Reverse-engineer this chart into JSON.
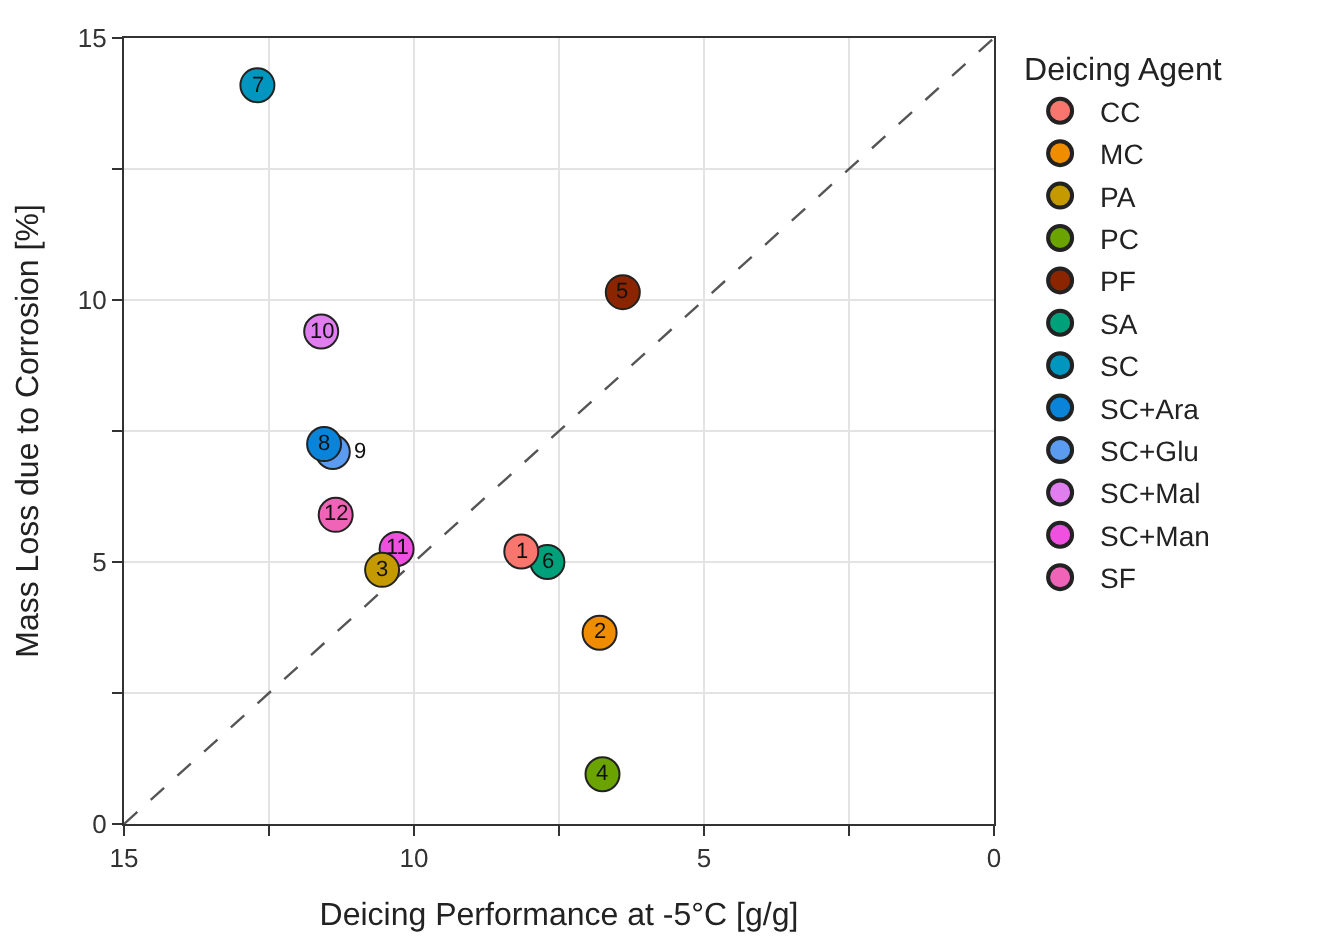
{
  "chart_data": {
    "type": "scatter",
    "xlabel": "Deicing Performance at -5°C [g/g]",
    "ylabel": "Mass Loss due to Corrosion [%]",
    "legend_title": "Deicing Agent",
    "xlim": [
      15,
      0
    ],
    "xticks": [
      15,
      {
        "value": 12.5,
        "label": null
      },
      10,
      {
        "value": 7.5,
        "label": null
      },
      5,
      {
        "value": 2.5,
        "label": null
      },
      0
    ],
    "ylim": [
      0,
      15
    ],
    "yticks": [
      0,
      {
        "value": 2.5,
        "label": null
      },
      5,
      {
        "value": 7.5,
        "label": null
      },
      10,
      {
        "value": 12.5,
        "label": null
      },
      15
    ],
    "grid": true,
    "legend": "right",
    "marker": "circle",
    "series": [
      {
        "type": "line",
        "x": [
          15,
          0
        ],
        "values": [
          0,
          15
        ],
        "color": "#555555",
        "line_style": "dashed",
        "marker": "none"
      },
      {
        "name": "CC",
        "color": "#f8766d",
        "x": [
          8.15
        ],
        "values": [
          5.2
        ]
      },
      {
        "name": "MC",
        "color": "#f08c00",
        "x": [
          6.8
        ],
        "values": [
          3.65
        ]
      },
      {
        "name": "PA",
        "color": "#c49a00",
        "x": [
          10.55
        ],
        "values": [
          4.85
        ]
      },
      {
        "name": "PC",
        "color": "#6ba300",
        "x": [
          6.75
        ],
        "values": [
          0.95
        ]
      },
      {
        "name": "PF",
        "color": "#8b2500",
        "x": [
          6.4
        ],
        "values": [
          10.15
        ]
      },
      {
        "name": "SA",
        "color": "#00a07a",
        "x": [
          7.7
        ],
        "values": [
          5.0
        ]
      },
      {
        "name": "SC",
        "color": "#0096c0",
        "x": [
          12.7
        ],
        "values": [
          14.1
        ]
      },
      {
        "name": "SC+Ara",
        "color": "#0a84d8",
        "x": [
          11.55
        ],
        "values": [
          7.25
        ]
      },
      {
        "name": "SC+Glu",
        "color": "#5b9cf0",
        "x": [
          11.4
        ],
        "values": [
          7.1
        ]
      },
      {
        "name": "SC+Mal",
        "color": "#e07ef0",
        "x": [
          11.6
        ],
        "values": [
          9.4
        ]
      },
      {
        "name": "SC+Man",
        "color": "#f050e0",
        "x": [
          10.3
        ],
        "values": [
          5.25
        ]
      },
      {
        "name": "SF",
        "color": "#f064b8",
        "x": [
          11.35
        ],
        "values": [
          5.9
        ]
      }
    ],
    "annotations": [
      {
        "text": "1",
        "x": 8.15,
        "y": 5.2
      },
      {
        "text": "2",
        "x": 6.8,
        "y": 3.65
      },
      {
        "text": "3",
        "x": 10.55,
        "y": 4.85
      },
      {
        "text": "4",
        "x": 6.75,
        "y": 0.95
      },
      {
        "text": "5",
        "x": 6.4,
        "y": 10.15
      },
      {
        "text": "6",
        "x": 7.7,
        "y": 5.0
      },
      {
        "text": "7",
        "x": 12.7,
        "y": 14.1
      },
      {
        "text": "8",
        "x": 11.55,
        "y": 7.25
      },
      {
        "text": "9",
        "x": 11.4,
        "y": 7.1
      },
      {
        "text": "10",
        "x": 11.6,
        "y": 9.4
      },
      {
        "text": "11",
        "x": 10.3,
        "y": 5.25
      },
      {
        "text": "12",
        "x": 11.35,
        "y": 5.9
      }
    ]
  }
}
